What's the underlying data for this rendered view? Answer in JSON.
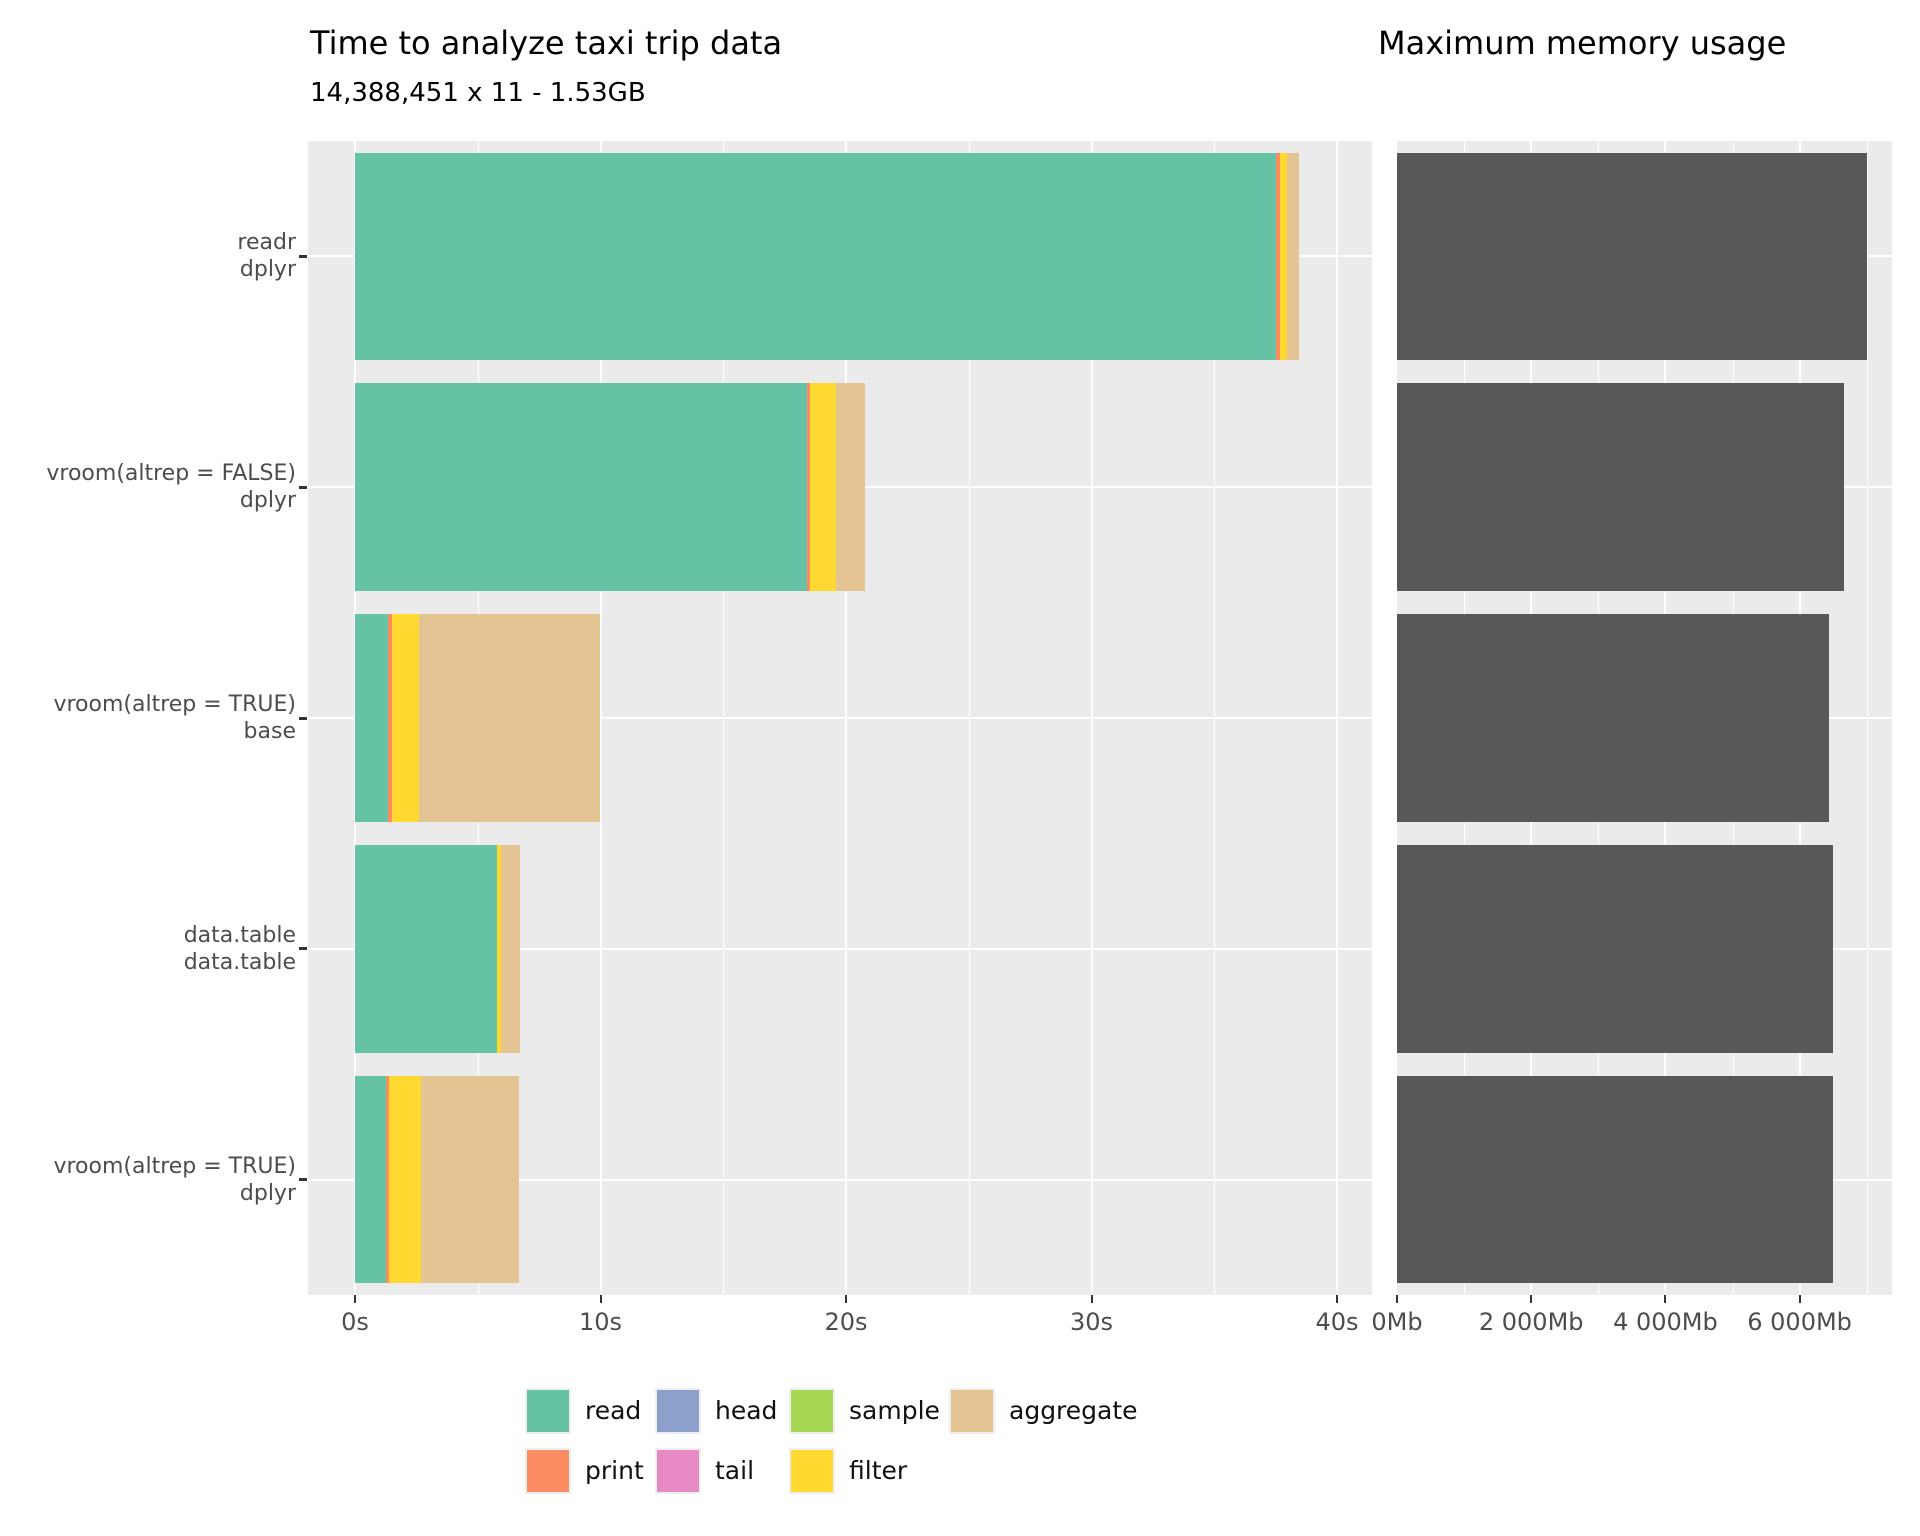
{
  "chart_data": [
    {
      "type": "bar",
      "orientation": "horizontal",
      "stacked": true,
      "title": "Time to analyze taxi trip data",
      "subtitle": "14,388,451 x 11 - 1.53GB",
      "categories": [
        [
          "readr",
          "dplyr"
        ],
        [
          "vroom(altrep = FALSE)",
          "dplyr"
        ],
        [
          "vroom(altrep = TRUE)",
          "base"
        ],
        [
          "data.table",
          "data.table"
        ],
        [
          "vroom(altrep = TRUE)",
          "dplyr"
        ]
      ],
      "series": [
        {
          "name": "read",
          "color": "#66C2A5",
          "values": [
            37.5,
            18.4,
            1.36,
            5.78,
            1.25
          ]
        },
        {
          "name": "print",
          "color": "#FC8D62",
          "values": [
            0.2,
            0.15,
            0.16,
            0.0,
            0.13
          ]
        },
        {
          "name": "head",
          "color": "#8DA0CB",
          "values": [
            0,
            0,
            0,
            0,
            0
          ]
        },
        {
          "name": "tail",
          "color": "#E78AC3",
          "values": [
            0,
            0,
            0,
            0,
            0
          ]
        },
        {
          "name": "sample",
          "color": "#A6D854",
          "values": [
            0,
            0,
            0,
            0,
            0
          ]
        },
        {
          "name": "filter",
          "color": "#FFD92F",
          "values": [
            0.26,
            1.03,
            1.09,
            0.18,
            1.3
          ]
        },
        {
          "name": "aggregate",
          "color": "#E5C494",
          "values": [
            0.5,
            1.2,
            7.36,
            0.77,
            4.0
          ]
        }
      ],
      "x_ticks": {
        "values": [
          0,
          10,
          20,
          30,
          40
        ],
        "labels": [
          "0s",
          "10s",
          "20s",
          "30s",
          "40s"
        ]
      },
      "x_minor_ticks": [
        5,
        15,
        25,
        35
      ],
      "xlim": [
        -1.9,
        41.4
      ],
      "grid": true,
      "legend_position": "bottom"
    },
    {
      "type": "bar",
      "orientation": "horizontal",
      "title": "Maximum memory usage",
      "categories": [
        [
          "readr",
          "dplyr"
        ],
        [
          "vroom(altrep = FALSE)",
          "dplyr"
        ],
        [
          "vroom(altrep = TRUE)",
          "base"
        ],
        [
          "data.table",
          "data.table"
        ],
        [
          "vroom(altrep = TRUE)",
          "dplyr"
        ]
      ],
      "values": [
        7000,
        6660,
        6440,
        6490,
        6500
      ],
      "bar_color": "#585858",
      "x_ticks": {
        "values": [
          0,
          2000,
          4000,
          6000
        ],
        "labels": [
          "0Mb",
          "2 000Mb",
          "4 000Mb",
          "6 000Mb"
        ]
      },
      "x_minor_ticks": [
        1000,
        3000,
        5000,
        7000
      ],
      "xlim": [
        0,
        7377
      ],
      "grid": true
    }
  ],
  "legend": {
    "rows": [
      [
        "read",
        "head",
        "sample",
        "aggregate"
      ],
      [
        "print",
        "tail",
        "filter"
      ]
    ]
  },
  "colors": {
    "panel_background": "#EBEBEB",
    "gridline": "#FFFFFF",
    "axis_text": "#4D4D4D",
    "memory_bar": "#585858"
  }
}
